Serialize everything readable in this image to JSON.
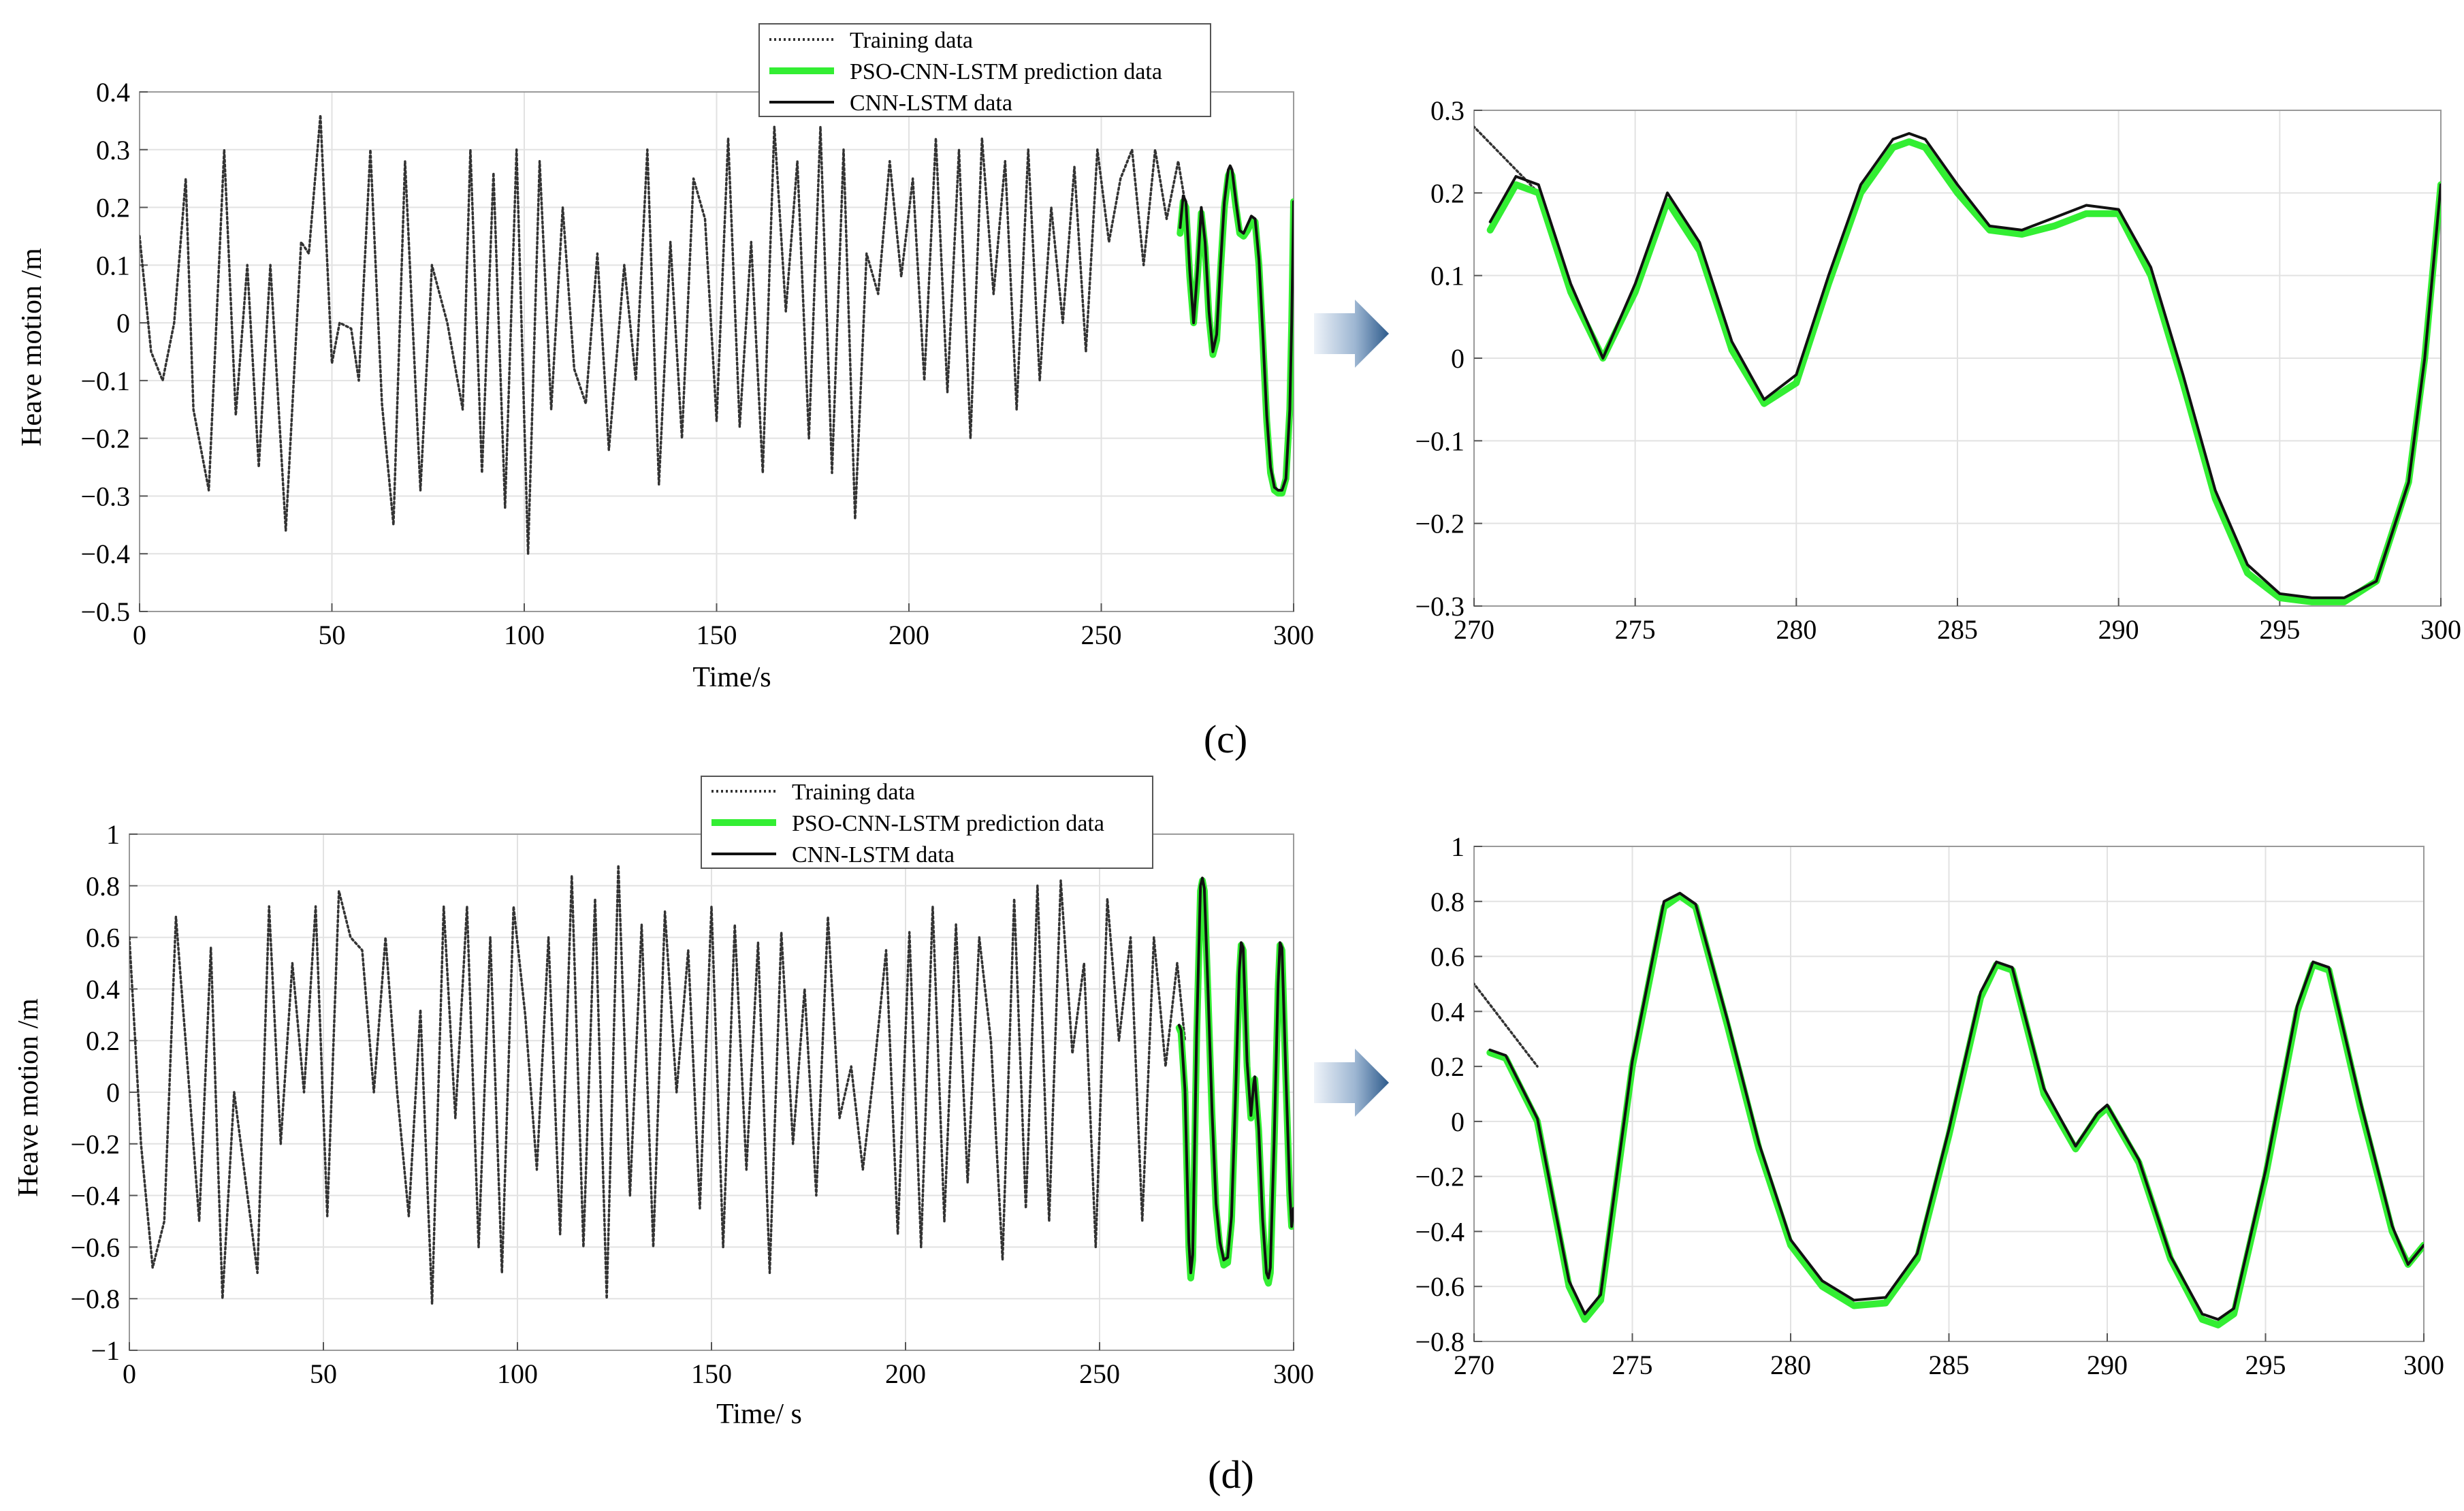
{
  "chart_data": [
    {
      "type": "line",
      "panel": "c",
      "part": "full",
      "xlabel": "Time/s",
      "ylabel": "Heave motion /m",
      "xlim": [
        0,
        300
      ],
      "ylim": [
        -0.5,
        0.4
      ],
      "x_ticks": [
        "0",
        "50",
        "100",
        "150",
        "200",
        "250",
        "300"
      ],
      "y_ticks": [
        "−0.5",
        "−0.4",
        "−0.3",
        "−0.2",
        "−0.1",
        "0",
        "0.1",
        "0.2",
        "0.3",
        "0.4"
      ],
      "legend": [
        "Training data",
        "PSO-CNN-LSTM prediction data",
        "CNN-LSTM data"
      ],
      "series": [
        {
          "name": "Training data",
          "style": "dotted",
          "color": "#333333",
          "x": [
            0,
            3,
            6,
            9,
            12,
            14,
            18,
            22,
            25,
            28,
            31,
            34,
            38,
            42,
            44,
            47,
            50,
            52,
            55,
            57,
            60,
            63,
            66,
            69,
            73,
            76,
            80,
            84,
            86,
            89,
            92,
            95,
            98,
            101,
            104,
            107,
            110,
            113,
            116,
            119,
            122,
            126,
            129,
            132,
            135,
            138,
            141,
            144,
            147,
            150,
            153,
            156,
            159,
            162,
            165,
            168,
            171,
            174,
            177,
            180,
            183,
            186,
            189,
            192,
            195,
            198,
            201,
            204,
            207,
            210,
            213,
            216,
            219,
            222,
            225,
            228,
            231,
            234,
            237,
            240,
            243,
            246,
            249,
            252,
            255,
            258,
            261,
            264,
            267,
            270,
            272
          ],
          "y": [
            0.15,
            -0.05,
            -0.1,
            0.0,
            0.25,
            -0.15,
            -0.29,
            0.3,
            -0.16,
            0.1,
            -0.25,
            0.1,
            -0.36,
            0.14,
            0.12,
            0.36,
            -0.07,
            0.0,
            -0.01,
            -0.1,
            0.3,
            -0.14,
            -0.35,
            0.28,
            -0.29,
            0.1,
            0.0,
            -0.15,
            0.3,
            -0.26,
            0.26,
            -0.32,
            0.3,
            -0.4,
            0.28,
            -0.15,
            0.2,
            -0.08,
            -0.14,
            0.12,
            -0.22,
            0.1,
            -0.1,
            0.3,
            -0.28,
            0.14,
            -0.2,
            0.25,
            0.18,
            -0.17,
            0.32,
            -0.18,
            0.14,
            -0.26,
            0.34,
            0.02,
            0.28,
            -0.2,
            0.34,
            -0.26,
            0.3,
            -0.34,
            0.12,
            0.05,
            0.28,
            0.08,
            0.25,
            -0.1,
            0.32,
            -0.12,
            0.3,
            -0.2,
            0.32,
            0.05,
            0.28,
            -0.15,
            0.3,
            -0.1,
            0.2,
            0.0,
            0.27,
            -0.05,
            0.3,
            0.14,
            0.25,
            0.3,
            0.1,
            0.3,
            0.18,
            0.28,
            0.2
          ]
        },
        {
          "name": "PSO-CNN-LSTM prediction data",
          "style": "solid",
          "color": "#33ee33",
          "x": [
            270.5,
            271.3,
            272,
            273,
            274,
            275,
            276,
            277,
            278,
            279,
            280,
            281,
            282,
            283,
            283.5,
            284,
            285,
            286,
            287,
            288,
            289,
            290,
            291,
            292,
            293,
            294,
            295,
            296,
            297,
            298,
            299,
            299.5,
            300
          ],
          "y": [
            0.155,
            0.21,
            0.2,
            0.08,
            0.0,
            0.08,
            0.19,
            0.13,
            0.01,
            -0.055,
            -0.03,
            0.09,
            0.2,
            0.255,
            0.262,
            0.255,
            0.2,
            0.155,
            0.15,
            0.16,
            0.175,
            0.175,
            0.1,
            -0.03,
            -0.17,
            -0.26,
            -0.29,
            -0.295,
            -0.295,
            -0.27,
            -0.15,
            0.0,
            0.21
          ]
        },
        {
          "name": "CNN-LSTM data",
          "style": "solid",
          "color": "#111111",
          "x": [
            270.5,
            271.3,
            272,
            273,
            274,
            275,
            276,
            277,
            278,
            279,
            280,
            281,
            282,
            283,
            283.5,
            284,
            285,
            286,
            287,
            288,
            289,
            290,
            291,
            292,
            293,
            294,
            295,
            296,
            297,
            298,
            299,
            299.5,
            300
          ],
          "y": [
            0.165,
            0.22,
            0.21,
            0.09,
            0.0,
            0.09,
            0.2,
            0.14,
            0.02,
            -0.05,
            -0.02,
            0.1,
            0.21,
            0.265,
            0.272,
            0.265,
            0.21,
            0.16,
            0.155,
            0.17,
            0.185,
            0.18,
            0.11,
            -0.02,
            -0.16,
            -0.25,
            -0.285,
            -0.29,
            -0.29,
            -0.27,
            -0.15,
            0.0,
            0.21
          ]
        }
      ]
    },
    {
      "type": "line",
      "panel": "c",
      "part": "zoom",
      "xlim": [
        270,
        300
      ],
      "ylim": [
        -0.3,
        0.3
      ],
      "x_ticks": [
        "270",
        "275",
        "280",
        "285",
        "290",
        "295",
        "300"
      ],
      "y_ticks": [
        "−0.3",
        "−0.2",
        "−0.1",
        "0",
        "0.1",
        "0.2",
        "0.3"
      ]
    },
    {
      "type": "line",
      "panel": "d",
      "part": "full",
      "xlabel": "Time/ s",
      "ylabel": "Heave motion /m",
      "xlim": [
        0,
        300
      ],
      "ylim": [
        -1,
        1
      ],
      "x_ticks": [
        "0",
        "50",
        "100",
        "150",
        "200",
        "250",
        "300"
      ],
      "y_ticks": [
        "−1",
        "−0.8",
        "−0.6",
        "−0.4",
        "−0.2",
        "0",
        "0.2",
        "0.4",
        "0.6",
        "0.8",
        "1"
      ],
      "legend": [
        "Training data",
        "PSO-CNN-LSTM prediction data",
        "CNN-LSTM data"
      ],
      "series": [
        {
          "name": "Training data",
          "style": "dotted",
          "color": "#333333",
          "x": [
            0,
            3,
            6,
            9,
            12,
            15,
            18,
            21,
            24,
            27,
            30,
            33,
            36,
            39,
            42,
            45,
            48,
            51,
            54,
            57,
            60,
            63,
            66,
            69,
            72,
            75,
            78,
            81,
            84,
            87,
            90,
            93,
            96,
            99,
            102,
            105,
            108,
            111,
            114,
            117,
            120,
            123,
            126,
            129,
            132,
            135,
            138,
            141,
            144,
            147,
            150,
            153,
            156,
            159,
            162,
            165,
            168,
            171,
            174,
            177,
            180,
            183,
            186,
            189,
            192,
            195,
            198,
            201,
            204,
            207,
            210,
            213,
            216,
            219,
            222,
            225,
            228,
            231,
            234,
            237,
            240,
            243,
            246,
            249,
            252,
            255,
            258,
            261,
            264,
            267,
            270,
            272
          ],
          "y": [
            0.6,
            -0.2,
            -0.68,
            -0.5,
            0.68,
            0.1,
            -0.5,
            0.56,
            -0.8,
            0.0,
            -0.35,
            -0.7,
            0.72,
            -0.2,
            0.5,
            0.0,
            0.72,
            -0.48,
            0.78,
            0.6,
            0.55,
            0.0,
            0.6,
            0.0,
            -0.48,
            0.32,
            -0.82,
            0.72,
            -0.1,
            0.72,
            -0.6,
            0.6,
            -0.7,
            0.72,
            0.3,
            -0.3,
            0.6,
            -0.55,
            0.84,
            -0.6,
            0.75,
            -0.8,
            0.88,
            -0.4,
            0.65,
            -0.6,
            0.7,
            0.0,
            0.55,
            -0.45,
            0.72,
            -0.6,
            0.65,
            -0.3,
            0.58,
            -0.7,
            0.62,
            -0.2,
            0.4,
            -0.4,
            0.68,
            -0.1,
            0.1,
            -0.3,
            0.1,
            0.55,
            -0.55,
            0.62,
            -0.6,
            0.72,
            -0.5,
            0.65,
            -0.35,
            0.6,
            0.2,
            -0.65,
            0.75,
            -0.45,
            0.8,
            -0.5,
            0.82,
            0.15,
            0.5,
            -0.6,
            0.75,
            0.2,
            0.6,
            -0.5,
            0.6,
            0.1,
            0.5,
            0.2
          ]
        },
        {
          "name": "PSO-CNN-LSTM prediction data",
          "style": "solid",
          "color": "#33ee33",
          "x": [
            270.5,
            271,
            272,
            273,
            273.5,
            274,
            275,
            276,
            276.5,
            277,
            278,
            279,
            280,
            281,
            282,
            283,
            284,
            285,
            286,
            286.5,
            287,
            288,
            289,
            289.7,
            290,
            291,
            292,
            293,
            293.5,
            294,
            295,
            296,
            296.5,
            297,
            298,
            299,
            299.5,
            300
          ],
          "y": [
            0.25,
            0.23,
            0.0,
            -0.6,
            -0.72,
            -0.65,
            0.2,
            0.78,
            0.82,
            0.78,
            0.35,
            -0.1,
            -0.45,
            -0.6,
            -0.67,
            -0.66,
            -0.5,
            -0.05,
            0.45,
            0.57,
            0.55,
            0.1,
            -0.1,
            0.02,
            0.05,
            -0.15,
            -0.5,
            -0.72,
            -0.74,
            -0.7,
            -0.2,
            0.4,
            0.57,
            0.55,
            0.05,
            -0.4,
            -0.52,
            -0.45
          ]
        },
        {
          "name": "CNN-LSTM data",
          "style": "solid",
          "color": "#111111",
          "x": [
            270.5,
            271,
            272,
            273,
            273.5,
            274,
            275,
            276,
            276.5,
            277,
            278,
            279,
            280,
            281,
            282,
            283,
            284,
            285,
            286,
            286.5,
            287,
            288,
            289,
            289.7,
            290,
            291,
            292,
            293,
            293.5,
            294,
            295,
            296,
            296.5,
            297,
            298,
            299,
            299.5,
            300
          ],
          "y": [
            0.26,
            0.24,
            0.01,
            -0.58,
            -0.7,
            -0.63,
            0.22,
            0.8,
            0.83,
            0.79,
            0.37,
            -0.08,
            -0.43,
            -0.58,
            -0.65,
            -0.64,
            -0.48,
            -0.03,
            0.47,
            0.58,
            0.56,
            0.12,
            -0.09,
            0.03,
            0.06,
            -0.14,
            -0.49,
            -0.7,
            -0.72,
            -0.68,
            -0.18,
            0.42,
            0.58,
            0.56,
            0.07,
            -0.38,
            -0.52,
            -0.45
          ]
        }
      ]
    },
    {
      "type": "line",
      "panel": "d",
      "part": "zoom",
      "xlim": [
        270,
        300
      ],
      "ylim": [
        -0.8,
        1
      ],
      "x_ticks": [
        "270",
        "275",
        "280",
        "285",
        "290",
        "295",
        "300"
      ],
      "y_ticks": [
        "−0.8",
        "−0.6",
        "−0.4",
        "−0.2",
        "0",
        "0.2",
        "0.4",
        "0.6",
        "0.8",
        "1"
      ]
    }
  ],
  "panel_labels": {
    "c": "(c)",
    "d": "(d)"
  },
  "colors": {
    "arrow_light": "#eef3f9",
    "arrow_dark": "#2e5b8c",
    "grid": "#e2e2e2"
  }
}
